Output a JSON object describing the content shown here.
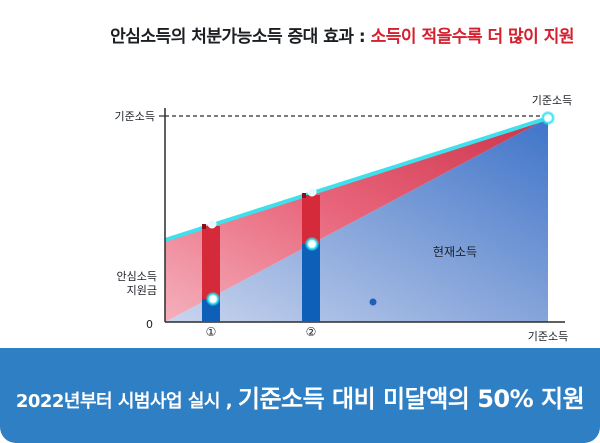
{
  "headline": {
    "lead": "안심소득의 처분가능소득 증대 효과 : ",
    "accent": "소득이 적을수록 더 많이 지원"
  },
  "diagram": {
    "y_axis_top_label": "기준소득",
    "y_axis_mid_label": "안심소득\n지원금",
    "y_axis_mid_label_line1": "안심소득",
    "y_axis_mid_label_line2": "지원금",
    "origin_label": "0",
    "x_axis_end_label": "기준소득",
    "top_right_label": "기준소득",
    "region_label": "현재소득",
    "marker_1": "①",
    "marker_2": "②",
    "colors": {
      "current_income": "#5b86cc",
      "support_band": "#e24962",
      "cyan_line": "#3fe0ec",
      "bar_blue": "#0d5fb8",
      "bar_red": "#d42a3a",
      "axis": "#2c2c2c",
      "footer": "#2f7fc4"
    }
  },
  "footer": {
    "small_text": "2022년부터 시범사업 실시 , ",
    "big_text": "기준소득 대비 미달액의 50% 지원"
  }
}
